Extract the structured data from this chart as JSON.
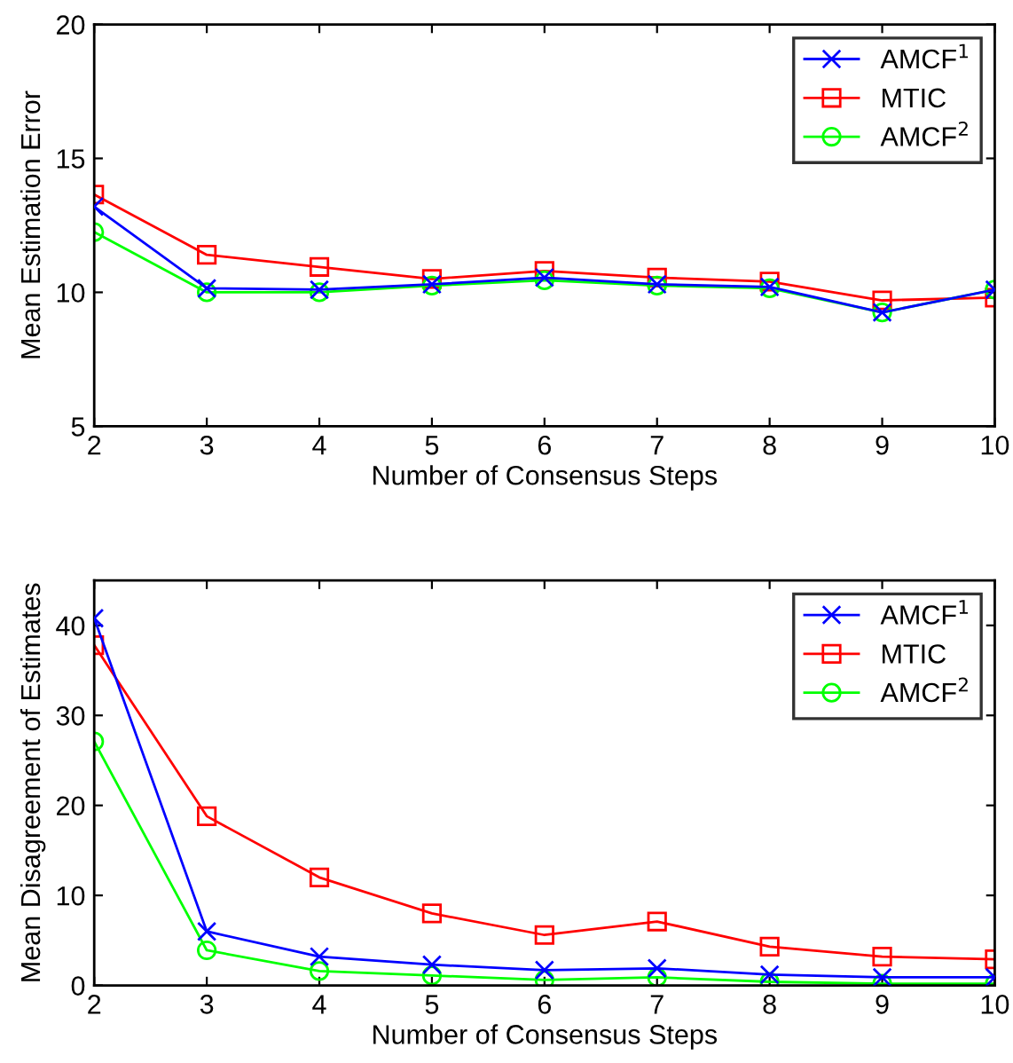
{
  "chart_data": [
    {
      "type": "line",
      "xlabel": "Number of Consensus Steps",
      "ylabel": "Mean Estimation Error",
      "x": [
        2,
        3,
        4,
        5,
        6,
        7,
        8,
        9,
        10
      ],
      "xlim": [
        2,
        10
      ],
      "xticks": [
        2,
        3,
        4,
        5,
        6,
        7,
        8,
        9,
        10
      ],
      "ylim": [
        5,
        20
      ],
      "yticks": [
        5,
        10,
        15,
        20
      ],
      "legend": "top right",
      "grid": false,
      "series": [
        {
          "name": "AMCF$^{1}$",
          "color": "#0000ff",
          "marker": "cross",
          "values": [
            13.2,
            10.15,
            10.1,
            10.3,
            10.55,
            10.3,
            10.2,
            9.25,
            10.1
          ]
        },
        {
          "name": "MTIC",
          "color": "#ff0000",
          "marker": "square",
          "values": [
            13.65,
            11.4,
            10.95,
            10.5,
            10.8,
            10.55,
            10.4,
            9.7,
            9.8
          ]
        },
        {
          "name": "AMCF$^{2}$",
          "color": "#00ff00",
          "marker": "circle",
          "values": [
            12.25,
            10.0,
            10.0,
            10.25,
            10.45,
            10.25,
            10.15,
            9.25,
            10.1
          ]
        }
      ]
    },
    {
      "type": "line",
      "xlabel": "Number of Consensus Steps",
      "ylabel": "Mean Disagreement of Estimates",
      "x": [
        2,
        3,
        4,
        5,
        6,
        7,
        8,
        9,
        10
      ],
      "xlim": [
        2,
        10
      ],
      "xticks": [
        2,
        3,
        4,
        5,
        6,
        7,
        8,
        9,
        10
      ],
      "ylim": [
        0,
        45
      ],
      "yticks": [
        0,
        10,
        20,
        30,
        40
      ],
      "legend": "top right",
      "grid": false,
      "series": [
        {
          "name": "AMCF$^{1}$",
          "color": "#0000ff",
          "marker": "cross",
          "values": [
            40.8,
            6.0,
            3.2,
            2.3,
            1.7,
            1.9,
            1.2,
            0.9,
            0.9
          ]
        },
        {
          "name": "MTIC",
          "color": "#ff0000",
          "marker": "square",
          "values": [
            37.8,
            18.8,
            12.0,
            8.0,
            5.6,
            7.1,
            4.3,
            3.2,
            2.9
          ]
        },
        {
          "name": "AMCF$^{2}$",
          "color": "#00ff00",
          "marker": "circle",
          "values": [
            27.1,
            3.9,
            1.6,
            1.1,
            0.6,
            0.9,
            0.4,
            0.2,
            0.2
          ]
        }
      ]
    }
  ]
}
